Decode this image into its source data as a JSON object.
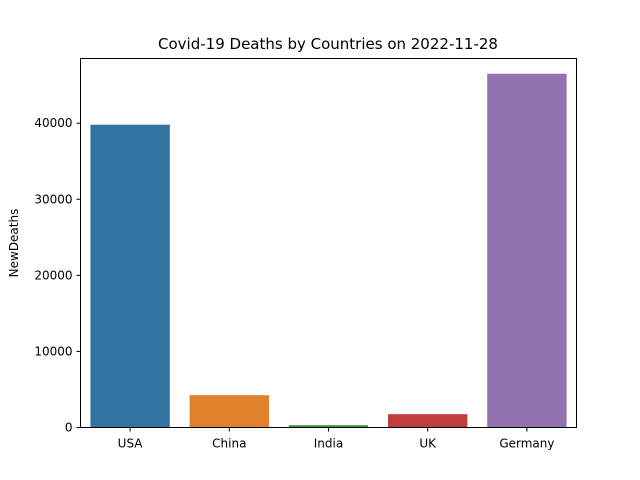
{
  "chart_data": {
    "type": "bar",
    "title": "Covid-19 Deaths by Countries on 2022-11-28",
    "xlabel": "",
    "ylabel": "NewDeaths",
    "categories": [
      "USA",
      "China",
      "India",
      "UK",
      "Germany"
    ],
    "values": [
      39800,
      4250,
      300,
      1750,
      46500
    ],
    "colors": [
      "#3274a1",
      "#e1812c",
      "#3a923a",
      "#c03d3e",
      "#9372b2"
    ],
    "ylim": [
      0,
      48500
    ],
    "yticks": [
      0,
      10000,
      20000,
      30000,
      40000
    ],
    "grid": false,
    "legend": "none"
  }
}
